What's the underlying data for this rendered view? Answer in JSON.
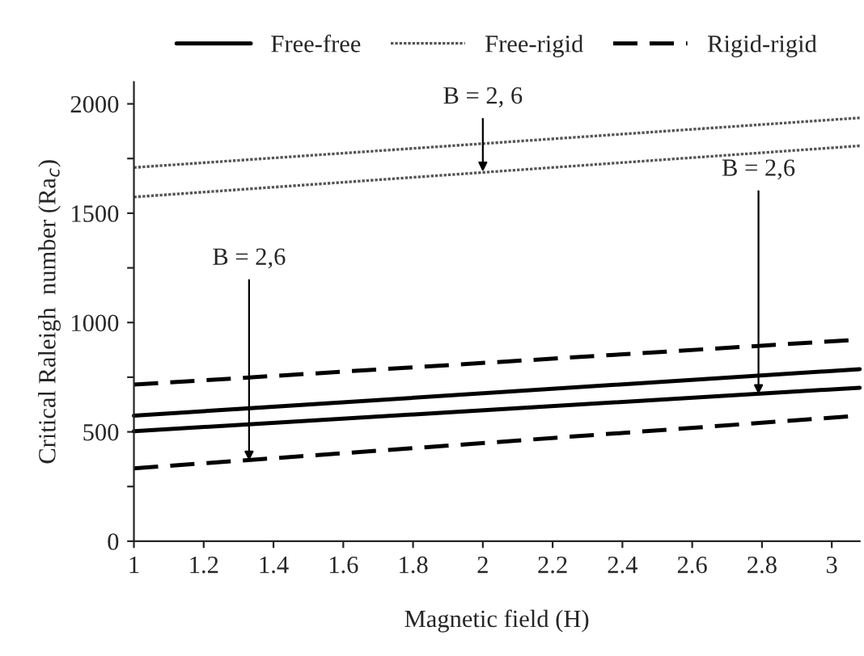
{
  "chart_data": {
    "type": "line",
    "xlabel": "Magnetic field (H)",
    "ylabel": "Critical Raleigh  number (Ra$_{c}$)",
    "xlim": [
      1,
      3.08
    ],
    "xticks": [
      1,
      1.2,
      1.4,
      1.6,
      1.8,
      2,
      2.2,
      2.4,
      2.6,
      2.8,
      3
    ],
    "ylim": [
      0,
      2100
    ],
    "yticks": [
      0,
      {
        "value": 250,
        "label": null
      },
      500,
      {
        "value": 750,
        "label": null
      },
      1000,
      {
        "value": 1250,
        "label": null
      },
      1500,
      {
        "value": 1750,
        "label": null
      },
      2000
    ],
    "grid": false,
    "legend": "top",
    "marker": "none",
    "x": [
      1,
      3.08
    ],
    "series": [
      {
        "name": "Free-free",
        "color": "#000000",
        "line_style": "solid",
        "values": [
          574,
          787
        ]
      },
      {
        "color": "#000000",
        "line_style": "solid",
        "values": [
          503,
          702
        ]
      },
      {
        "name": "Free-rigid",
        "color": "#555555",
        "line_style": "dotted",
        "values": [
          1709,
          1936
        ]
      },
      {
        "color": "#555555",
        "line_style": "dotted",
        "values": [
          1574,
          1808
        ]
      },
      {
        "name": "Rigid-rigid",
        "color": "#000000",
        "line_style": "dashed",
        "values": [
          716,
          922
        ]
      },
      {
        "color": "#000000",
        "line_style": "dashed",
        "values": [
          333,
          574
        ]
      }
    ],
    "annotations": [
      {
        "text": "B = 2, 6",
        "x": 2,
        "y": 1690
      },
      {
        "text": "B = 2,6",
        "x": 1.33,
        "y": 368
      },
      {
        "text": "B = 2,6",
        "x": 2.79,
        "y": 672
      }
    ]
  }
}
